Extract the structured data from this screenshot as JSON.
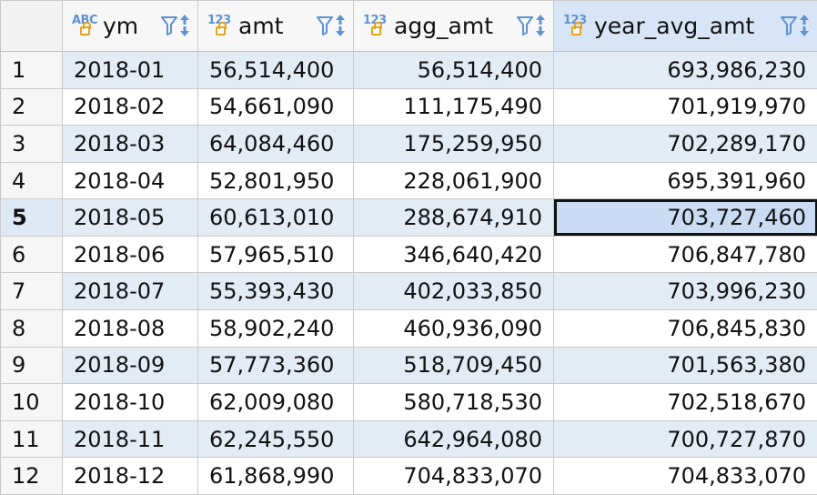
{
  "columns": [
    {
      "name": "ym",
      "type_badge": "ABC"
    },
    {
      "name": "amt",
      "type_badge": "123"
    },
    {
      "name": "agg_amt",
      "type_badge": "123"
    },
    {
      "name": "year_avg_amt",
      "type_badge": "123"
    }
  ],
  "rows": [
    {
      "num": "1",
      "ym": "2018-01",
      "amt": "56,514,400",
      "agg_amt": "56,514,400",
      "year_avg_amt": "693,986,230"
    },
    {
      "num": "2",
      "ym": "2018-02",
      "amt": "54,661,090",
      "agg_amt": "111,175,490",
      "year_avg_amt": "701,919,970"
    },
    {
      "num": "3",
      "ym": "2018-03",
      "amt": "64,084,460",
      "agg_amt": "175,259,950",
      "year_avg_amt": "702,289,170"
    },
    {
      "num": "4",
      "ym": "2018-04",
      "amt": "52,801,950",
      "agg_amt": "228,061,900",
      "year_avg_amt": "695,391,960"
    },
    {
      "num": "5",
      "ym": "2018-05",
      "amt": "60,613,010",
      "agg_amt": "288,674,910",
      "year_avg_amt": "703,727,460"
    },
    {
      "num": "6",
      "ym": "2018-06",
      "amt": "57,965,510",
      "agg_amt": "346,640,420",
      "year_avg_amt": "706,847,780"
    },
    {
      "num": "7",
      "ym": "2018-07",
      "amt": "55,393,430",
      "agg_amt": "402,033,850",
      "year_avg_amt": "703,996,230"
    },
    {
      "num": "8",
      "ym": "2018-08",
      "amt": "58,902,240",
      "agg_amt": "460,936,090",
      "year_avg_amt": "706,845,830"
    },
    {
      "num": "9",
      "ym": "2018-09",
      "amt": "57,773,360",
      "agg_amt": "518,709,450",
      "year_avg_amt": "701,563,380"
    },
    {
      "num": "10",
      "ym": "2018-10",
      "amt": "62,009,080",
      "agg_amt": "580,718,530",
      "year_avg_amt": "702,518,670"
    },
    {
      "num": "11",
      "ym": "2018-11",
      "amt": "62,245,550",
      "agg_amt": "642,964,080",
      "year_avg_amt": "700,727,870"
    },
    {
      "num": "12",
      "ym": "2018-12",
      "amt": "61,868,990",
      "agg_amt": "704,833,070",
      "year_avg_amt": "704,833,070"
    }
  ],
  "selection": {
    "row": "5",
    "column": "year_avg_amt"
  },
  "icons": {
    "type": "lock-type-icon",
    "filter": "filter-icon",
    "sort": "sort-icon"
  },
  "colors": {
    "alt_row": "#e3ebf5",
    "active_header": "#d8e5f6",
    "type_badge": "#5f93d0",
    "lock": "#e3a321",
    "filter": "#5f93d0"
  }
}
